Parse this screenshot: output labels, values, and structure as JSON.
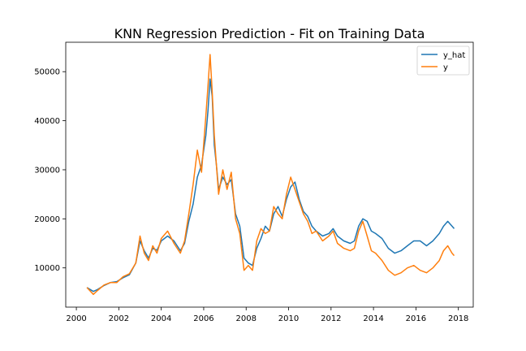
{
  "chart_data": {
    "type": "line",
    "title": "KNN Regression Prediction - Fit on Training Data",
    "xlabel": "",
    "ylabel": "",
    "xlim": [
      1999.5,
      2018.7
    ],
    "ylim": [
      2000,
      56000
    ],
    "x_ticks": [
      2000,
      2002,
      2004,
      2006,
      2008,
      2010,
      2012,
      2014,
      2016,
      2018
    ],
    "y_ticks": [
      10000,
      20000,
      30000,
      40000,
      50000
    ],
    "y_tick_labels": [
      "10000",
      "20000",
      "30000",
      "40000",
      "50000"
    ],
    "x_tick_labels": [
      "2000",
      "2002",
      "2004",
      "2006",
      "2008",
      "2010",
      "2012",
      "2014",
      "2016",
      "2018"
    ],
    "grid": false,
    "legend_position": "top-right",
    "legend": [
      "y_hat",
      "y"
    ],
    "colors": {
      "y_hat": "#1f77b4",
      "y": "#ff7f0e"
    },
    "series": [
      {
        "name": "y_hat",
        "points": [
          [
            2000.5,
            6000
          ],
          [
            2000.8,
            5200
          ],
          [
            2001.0,
            5600
          ],
          [
            2001.3,
            6400
          ],
          [
            2001.6,
            7000
          ],
          [
            2001.9,
            7200
          ],
          [
            2002.2,
            8000
          ],
          [
            2002.5,
            8600
          ],
          [
            2002.8,
            11000
          ],
          [
            2003.0,
            15500
          ],
          [
            2003.2,
            13500
          ],
          [
            2003.4,
            12000
          ],
          [
            2003.6,
            14000
          ],
          [
            2003.8,
            13600
          ],
          [
            2004.0,
            15500
          ],
          [
            2004.3,
            16500
          ],
          [
            2004.6,
            15500
          ],
          [
            2004.9,
            13500
          ],
          [
            2005.1,
            15000
          ],
          [
            2005.3,
            19500
          ],
          [
            2005.5,
            23000
          ],
          [
            2005.7,
            28500
          ],
          [
            2005.9,
            31000
          ],
          [
            2006.1,
            37000
          ],
          [
            2006.2,
            42000
          ],
          [
            2006.3,
            48500
          ],
          [
            2006.4,
            45000
          ],
          [
            2006.5,
            35000
          ],
          [
            2006.6,
            31000
          ],
          [
            2006.7,
            26000
          ],
          [
            2006.9,
            28500
          ],
          [
            2007.1,
            27000
          ],
          [
            2007.3,
            28000
          ],
          [
            2007.5,
            21000
          ],
          [
            2007.7,
            18500
          ],
          [
            2007.9,
            12000
          ],
          [
            2008.1,
            11000
          ],
          [
            2008.3,
            10500
          ],
          [
            2008.5,
            14000
          ],
          [
            2008.7,
            16000
          ],
          [
            2008.9,
            18500
          ],
          [
            2009.1,
            17500
          ],
          [
            2009.3,
            21000
          ],
          [
            2009.5,
            22500
          ],
          [
            2009.7,
            20500
          ],
          [
            2009.9,
            24000
          ],
          [
            2010.1,
            26500
          ],
          [
            2010.3,
            27500
          ],
          [
            2010.5,
            24000
          ],
          [
            2010.7,
            21500
          ],
          [
            2010.9,
            20500
          ],
          [
            2011.1,
            18500
          ],
          [
            2011.3,
            17500
          ],
          [
            2011.6,
            16500
          ],
          [
            2011.9,
            17000
          ],
          [
            2012.1,
            18000
          ],
          [
            2012.3,
            16500
          ],
          [
            2012.6,
            15500
          ],
          [
            2012.9,
            15000
          ],
          [
            2013.1,
            15500
          ],
          [
            2013.3,
            18500
          ],
          [
            2013.5,
            20000
          ],
          [
            2013.7,
            19500
          ],
          [
            2013.9,
            17500
          ],
          [
            2014.1,
            17000
          ],
          [
            2014.4,
            16000
          ],
          [
            2014.7,
            14000
          ],
          [
            2015.0,
            13000
          ],
          [
            2015.3,
            13500
          ],
          [
            2015.6,
            14500
          ],
          [
            2015.9,
            15500
          ],
          [
            2016.2,
            15500
          ],
          [
            2016.5,
            14500
          ],
          [
            2016.8,
            15500
          ],
          [
            2017.1,
            17000
          ],
          [
            2017.3,
            18500
          ],
          [
            2017.5,
            19500
          ],
          [
            2017.7,
            18500
          ],
          [
            2017.8,
            18000
          ]
        ]
      },
      {
        "name": "y",
        "points": [
          [
            2000.5,
            6000
          ],
          [
            2000.8,
            4600
          ],
          [
            2001.0,
            5400
          ],
          [
            2001.3,
            6500
          ],
          [
            2001.6,
            7000
          ],
          [
            2001.9,
            7000
          ],
          [
            2002.2,
            8200
          ],
          [
            2002.5,
            8800
          ],
          [
            2002.8,
            11000
          ],
          [
            2003.0,
            16500
          ],
          [
            2003.2,
            13000
          ],
          [
            2003.4,
            11500
          ],
          [
            2003.6,
            14500
          ],
          [
            2003.8,
            13000
          ],
          [
            2004.0,
            16000
          ],
          [
            2004.3,
            17500
          ],
          [
            2004.6,
            15000
          ],
          [
            2004.9,
            13000
          ],
          [
            2005.1,
            15500
          ],
          [
            2005.3,
            21000
          ],
          [
            2005.5,
            27000
          ],
          [
            2005.7,
            34000
          ],
          [
            2005.9,
            29500
          ],
          [
            2006.1,
            41000
          ],
          [
            2006.2,
            47000
          ],
          [
            2006.3,
            53500
          ],
          [
            2006.4,
            46000
          ],
          [
            2006.5,
            37000
          ],
          [
            2006.6,
            31000
          ],
          [
            2006.7,
            25000
          ],
          [
            2006.9,
            30000
          ],
          [
            2007.1,
            26000
          ],
          [
            2007.3,
            29500
          ],
          [
            2007.5,
            20000
          ],
          [
            2007.7,
            17000
          ],
          [
            2007.9,
            9500
          ],
          [
            2008.1,
            10500
          ],
          [
            2008.3,
            9500
          ],
          [
            2008.5,
            15500
          ],
          [
            2008.7,
            18000
          ],
          [
            2008.9,
            17000
          ],
          [
            2009.1,
            17500
          ],
          [
            2009.3,
            22500
          ],
          [
            2009.5,
            21000
          ],
          [
            2009.7,
            20000
          ],
          [
            2009.9,
            25000
          ],
          [
            2010.1,
            28500
          ],
          [
            2010.3,
            26000
          ],
          [
            2010.5,
            23500
          ],
          [
            2010.7,
            21000
          ],
          [
            2010.9,
            19500
          ],
          [
            2011.1,
            17000
          ],
          [
            2011.3,
            17500
          ],
          [
            2011.6,
            15500
          ],
          [
            2011.9,
            16500
          ],
          [
            2012.1,
            17500
          ],
          [
            2012.3,
            15000
          ],
          [
            2012.6,
            14000
          ],
          [
            2012.9,
            13500
          ],
          [
            2013.1,
            14000
          ],
          [
            2013.3,
            17500
          ],
          [
            2013.5,
            19500
          ],
          [
            2013.7,
            16500
          ],
          [
            2013.9,
            13500
          ],
          [
            2014.1,
            13000
          ],
          [
            2014.4,
            11500
          ],
          [
            2014.7,
            9500
          ],
          [
            2015.0,
            8500
          ],
          [
            2015.3,
            9000
          ],
          [
            2015.6,
            10000
          ],
          [
            2015.9,
            10500
          ],
          [
            2016.2,
            9500
          ],
          [
            2016.5,
            9000
          ],
          [
            2016.8,
            10000
          ],
          [
            2017.1,
            11500
          ],
          [
            2017.3,
            13500
          ],
          [
            2017.5,
            14500
          ],
          [
            2017.7,
            13000
          ],
          [
            2017.8,
            12500
          ]
        ]
      }
    ]
  }
}
